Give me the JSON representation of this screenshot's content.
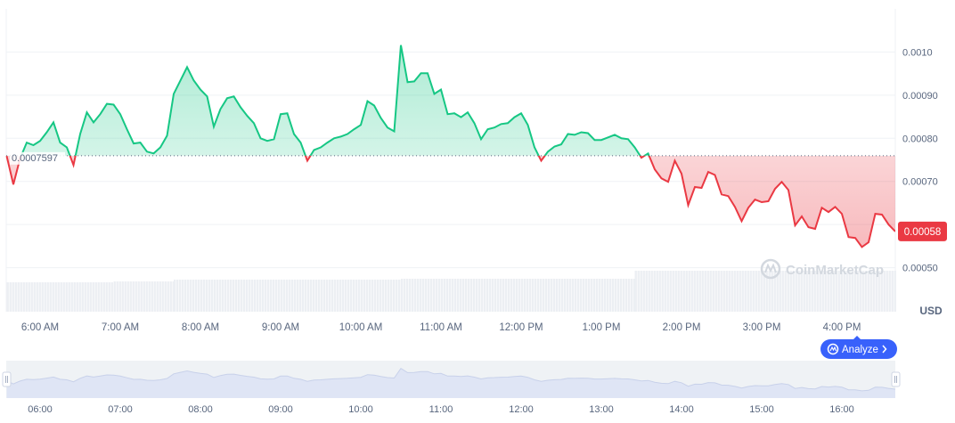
{
  "chart_data": {
    "type": "line",
    "currency_label": "USD",
    "x_start": "05:35",
    "x_step_minutes": 5,
    "baseline": 0.0007597,
    "baseline_label": "0.0007597",
    "current_price_label": "0.00058",
    "ylim": [
      0.000398,
      0.0011
    ],
    "y_ticks": [
      {
        "value": 0.001,
        "label": "0.0010"
      },
      {
        "value": 0.0009,
        "label": "0.00090"
      },
      {
        "value": 0.0008,
        "label": "0.00080"
      },
      {
        "value": 0.0007,
        "label": "0.00070"
      },
      {
        "value": 0.0006,
        "label": ""
      },
      {
        "value": 0.0005,
        "label": "0.00050"
      }
    ],
    "x_ticks": [
      {
        "time": "06:00",
        "label": "6:00 AM"
      },
      {
        "time": "07:00",
        "label": "7:00 AM"
      },
      {
        "time": "08:00",
        "label": "8:00 AM"
      },
      {
        "time": "09:00",
        "label": "9:00 AM"
      },
      {
        "time": "10:00",
        "label": "10:00 AM"
      },
      {
        "time": "11:00",
        "label": "11:00 AM"
      },
      {
        "time": "12:00",
        "label": "12:00 PM"
      },
      {
        "time": "13:00",
        "label": "1:00 PM"
      },
      {
        "time": "14:00",
        "label": "2:00 PM"
      },
      {
        "time": "15:00",
        "label": "3:00 PM"
      },
      {
        "time": "16:00",
        "label": "4:00 PM"
      }
    ],
    "navigator_ticks": [
      "06:00",
      "07:00",
      "08:00",
      "09:00",
      "10:00",
      "11:00",
      "12:00",
      "13:00",
      "14:00",
      "15:00",
      "16:00"
    ],
    "values": [
      0.000759,
      0.000693,
      0.000753,
      0.00079,
      0.000784,
      0.000794,
      0.000814,
      0.000837,
      0.00079,
      0.000779,
      0.000738,
      0.00081,
      0.00086,
      0.000837,
      0.000856,
      0.00088,
      0.000878,
      0.000856,
      0.000821,
      0.000788,
      0.00079,
      0.000769,
      0.000765,
      0.000779,
      0.000806,
      0.000903,
      0.000934,
      0.000965,
      0.000934,
      0.000913,
      0.000897,
      0.000827,
      0.000868,
      0.000893,
      0.000897,
      0.000872,
      0.000852,
      0.000835,
      0.0008,
      0.000794,
      0.000798,
      0.000856,
      0.000858,
      0.00081,
      0.00079,
      0.000748,
      0.000773,
      0.000779,
      0.00079,
      0.0008,
      0.000804,
      0.00081,
      0.000821,
      0.000831,
      0.000886,
      0.000876,
      0.000847,
      0.000825,
      0.000816,
      0.001016,
      0.00093,
      0.000932,
      0.000951,
      0.000951,
      0.000903,
      0.000913,
      0.000856,
      0.000858,
      0.000849,
      0.00086,
      0.000835,
      0.000798,
      0.000821,
      0.000825,
      0.000833,
      0.000835,
      0.000849,
      0.000858,
      0.000831,
      0.000779,
      0.000748,
      0.000769,
      0.000781,
      0.000786,
      0.00081,
      0.000808,
      0.000814,
      0.000812,
      0.000796,
      0.000796,
      0.000802,
      0.000808,
      0.0008,
      0.000798,
      0.000779,
      0.000755,
      0.000765,
      0.000728,
      0.000707,
      0.000699,
      0.000748,
      0.000718,
      0.000645,
      0.000687,
      0.000685,
      0.000722,
      0.000715,
      0.00067,
      0.000666,
      0.000641,
      0.000608,
      0.000639,
      0.000658,
      0.000652,
      0.000654,
      0.000683,
      0.000699,
      0.00068,
      0.000598,
      0.000619,
      0.000594,
      0.00059,
      0.000639,
      0.000629,
      0.000641,
      0.000625,
      0.000571,
      0.000569,
      0.000548,
      0.000559,
      0.000625,
      0.000623,
      0.0006,
      0.000584
    ],
    "volume_segments": [
      {
        "from": "05:35",
        "to": "06:55",
        "level": 0.33
      },
      {
        "from": "06:55",
        "to": "07:40",
        "level": 0.34
      },
      {
        "from": "07:40",
        "to": "10:30",
        "level": 0.36
      },
      {
        "from": "10:30",
        "to": "13:25",
        "level": 0.37
      },
      {
        "from": "13:25",
        "to": "16:40",
        "level": 0.46
      }
    ],
    "colors": {
      "up": "#16c784",
      "down": "#ea3943",
      "accent": "#3861fb",
      "grid": "#eff2f5",
      "volume": "#eceff3"
    }
  },
  "watermark": "CoinMarketCap",
  "analyze_button": {
    "label": "Analyze",
    "icon": "analyze-chat-icon"
  }
}
